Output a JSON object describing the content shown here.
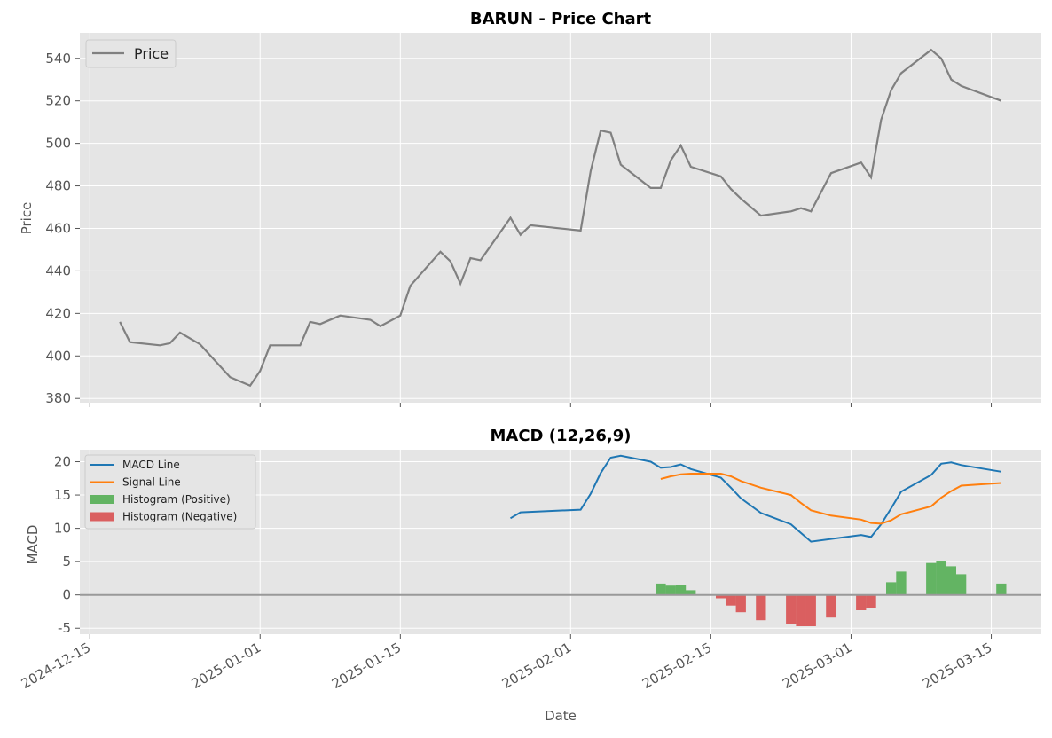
{
  "chart_data": [
    {
      "type": "line",
      "title": "BARUN - Price Chart",
      "xlabel": "",
      "ylabel": "Price",
      "ylim": [
        378,
        552
      ],
      "yticks": [
        380,
        400,
        420,
        440,
        460,
        480,
        500,
        520,
        540
      ],
      "grid": true,
      "legend_position": "top-left",
      "colors": {
        "price": "#808080"
      },
      "series": [
        {
          "name": "Price",
          "points": [
            [
              "2024-12-18",
              416
            ],
            [
              "2024-12-19",
              406.5
            ],
            [
              "2024-12-22",
              405
            ],
            [
              "2024-12-23",
              406
            ],
            [
              "2024-12-24",
              411
            ],
            [
              "2024-12-26",
              405.5
            ],
            [
              "2024-12-29",
              390
            ],
            [
              "2024-12-31",
              386
            ],
            [
              "2025-01-01",
              393
            ],
            [
              "2025-01-02",
              405
            ],
            [
              "2025-01-05",
              405
            ],
            [
              "2025-01-06",
              416
            ],
            [
              "2025-01-07",
              415
            ],
            [
              "2025-01-09",
              419
            ],
            [
              "2025-01-12",
              417
            ],
            [
              "2025-01-13",
              414
            ],
            [
              "2025-01-15",
              419
            ],
            [
              "2025-01-16",
              433
            ],
            [
              "2025-01-19",
              449
            ],
            [
              "2025-01-20",
              444.5
            ],
            [
              "2025-01-21",
              434
            ],
            [
              "2025-01-22",
              446
            ],
            [
              "2025-01-23",
              445
            ],
            [
              "2025-01-26",
              465
            ],
            [
              "2025-01-27",
              457
            ],
            [
              "2025-01-28",
              461.5
            ],
            [
              "2025-02-02",
              459
            ],
            [
              "2025-02-03",
              487
            ],
            [
              "2025-02-04",
              506
            ],
            [
              "2025-02-05",
              505
            ],
            [
              "2025-02-06",
              490
            ],
            [
              "2025-02-09",
              479
            ],
            [
              "2025-02-10",
              479
            ],
            [
              "2025-02-11",
              492
            ],
            [
              "2025-02-12",
              499
            ],
            [
              "2025-02-13",
              489
            ],
            [
              "2025-02-16",
              484.5
            ],
            [
              "2025-02-17",
              478.5
            ],
            [
              "2025-02-18",
              474
            ],
            [
              "2025-02-20",
              466
            ],
            [
              "2025-02-23",
              468
            ],
            [
              "2025-02-24",
              469.5
            ],
            [
              "2025-02-25",
              468
            ],
            [
              "2025-02-27",
              486
            ],
            [
              "2025-03-02",
              491
            ],
            [
              "2025-03-03",
              484
            ],
            [
              "2025-03-04",
              511
            ],
            [
              "2025-03-05",
              525
            ],
            [
              "2025-03-06",
              533
            ],
            [
              "2025-03-09",
              544
            ],
            [
              "2025-03-10",
              540
            ],
            [
              "2025-03-11",
              530
            ],
            [
              "2025-03-12",
              527
            ],
            [
              "2025-03-16",
              520
            ]
          ]
        }
      ]
    },
    {
      "type": "line",
      "title": "MACD (12,26,9)",
      "xlabel": "Date",
      "ylabel": "MACD",
      "ylim": [
        -5.9,
        21.8
      ],
      "yticks": [
        -5,
        0,
        5,
        10,
        15,
        20
      ],
      "xlim": [
        "2024-12-14",
        "2025-03-20"
      ],
      "xticks": [
        "2024-12-15",
        "2025-01-01",
        "2025-01-15",
        "2025-02-01",
        "2025-02-15",
        "2025-03-01",
        "2025-03-15"
      ],
      "grid": true,
      "legend_position": "top-left",
      "colors": {
        "macd": "#1f77b4",
        "signal": "#ff7f0e",
        "hist_pos": "#2ca02c",
        "hist_neg": "#d62728",
        "zero": "#999999"
      },
      "series": [
        {
          "name": "MACD Line",
          "points": [
            [
              "2025-01-26",
              11.5
            ],
            [
              "2025-01-27",
              12.4
            ],
            [
              "2025-02-02",
              12.8
            ],
            [
              "2025-02-03",
              15.2
            ],
            [
              "2025-02-04",
              18.3
            ],
            [
              "2025-02-05",
              20.6
            ],
            [
              "2025-02-06",
              20.9
            ],
            [
              "2025-02-09",
              20.0
            ],
            [
              "2025-02-10",
              19.1
            ],
            [
              "2025-02-11",
              19.2
            ],
            [
              "2025-02-12",
              19.6
            ],
            [
              "2025-02-13",
              18.9
            ],
            [
              "2025-02-16",
              17.6
            ],
            [
              "2025-02-17",
              16.1
            ],
            [
              "2025-02-18",
              14.5
            ],
            [
              "2025-02-20",
              12.3
            ],
            [
              "2025-02-23",
              10.6
            ],
            [
              "2025-02-24",
              9.3
            ],
            [
              "2025-02-25",
              8.0
            ],
            [
              "2025-03-02",
              9.0
            ],
            [
              "2025-03-03",
              8.7
            ],
            [
              "2025-03-04",
              10.6
            ],
            [
              "2025-03-05",
              13.0
            ],
            [
              "2025-03-06",
              15.5
            ],
            [
              "2025-03-09",
              18.0
            ],
            [
              "2025-03-10",
              19.7
            ],
            [
              "2025-03-11",
              19.9
            ],
            [
              "2025-03-12",
              19.5
            ],
            [
              "2025-03-16",
              18.5
            ]
          ]
        },
        {
          "name": "Signal Line",
          "points": [
            [
              "2025-02-10",
              17.4
            ],
            [
              "2025-02-11",
              17.8
            ],
            [
              "2025-02-12",
              18.1
            ],
            [
              "2025-02-13",
              18.2
            ],
            [
              "2025-02-16",
              18.2
            ],
            [
              "2025-02-17",
              17.8
            ],
            [
              "2025-02-18",
              17.1
            ],
            [
              "2025-02-20",
              16.1
            ],
            [
              "2025-02-23",
              15.0
            ],
            [
              "2025-02-24",
              13.8
            ],
            [
              "2025-02-25",
              12.7
            ],
            [
              "2025-02-27",
              11.9
            ],
            [
              "2025-03-02",
              11.3
            ],
            [
              "2025-03-03",
              10.8
            ],
            [
              "2025-03-04",
              10.7
            ],
            [
              "2025-03-05",
              11.2
            ],
            [
              "2025-03-06",
              12.1
            ],
            [
              "2025-03-09",
              13.3
            ],
            [
              "2025-03-10",
              14.6
            ],
            [
              "2025-03-11",
              15.6
            ],
            [
              "2025-03-12",
              16.4
            ],
            [
              "2025-03-16",
              16.8
            ]
          ]
        },
        {
          "name": "Histogram (Positive)",
          "kind": "bar",
          "points": [
            [
              "2025-02-10",
              1.7
            ],
            [
              "2025-02-11",
              1.4
            ],
            [
              "2025-02-12",
              1.5
            ],
            [
              "2025-02-13",
              0.7
            ],
            [
              "2025-03-05",
              1.9
            ],
            [
              "2025-03-06",
              3.5
            ],
            [
              "2025-03-09",
              4.8
            ],
            [
              "2025-03-10",
              5.1
            ],
            [
              "2025-03-11",
              4.3
            ],
            [
              "2025-03-12",
              3.1
            ],
            [
              "2025-03-16",
              1.7
            ]
          ]
        },
        {
          "name": "Histogram (Negative)",
          "kind": "bar",
          "points": [
            [
              "2025-02-16",
              -0.5
            ],
            [
              "2025-02-17",
              -1.6
            ],
            [
              "2025-02-18",
              -2.6
            ],
            [
              "2025-02-20",
              -3.8
            ],
            [
              "2025-02-23",
              -4.4
            ],
            [
              "2025-02-24",
              -4.7
            ],
            [
              "2025-02-25",
              -4.7
            ],
            [
              "2025-02-27",
              -3.4
            ],
            [
              "2025-03-02",
              -2.3
            ],
            [
              "2025-03-03",
              -2.0
            ]
          ]
        }
      ]
    }
  ]
}
